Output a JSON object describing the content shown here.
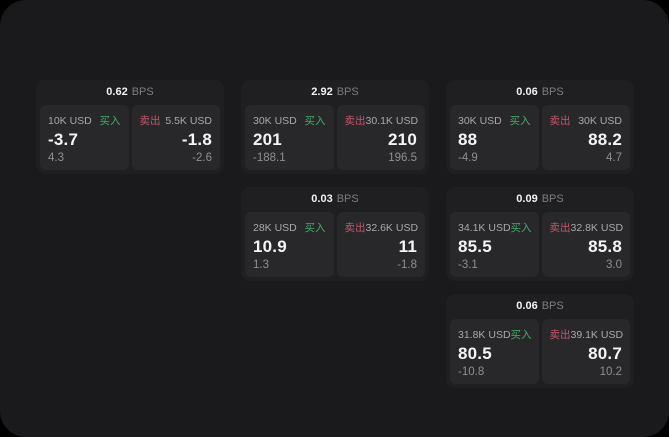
{
  "labels": {
    "buy": "买入",
    "sell": "卖出",
    "bps": "BPS"
  },
  "colors": {
    "surface": "#1a1a1c",
    "card": "#1f1f21",
    "panel": "#28282b",
    "buy_green": "#43ac69",
    "sell_red": "#c5566b"
  },
  "cards": [
    {
      "bps": "0.62",
      "buy": {
        "size": "10K USD",
        "value": "-3.7",
        "sub": "4.3"
      },
      "sell": {
        "size": "5.5K USD",
        "value": "-1.8",
        "sub": "-2.6"
      }
    },
    {
      "bps": "2.92",
      "buy": {
        "size": "30K USD",
        "value": "201",
        "sub": "-188.1"
      },
      "sell": {
        "size": "30.1K USD",
        "value": "210",
        "sub": "196.5"
      }
    },
    {
      "bps": "0.06",
      "buy": {
        "size": "30K USD",
        "value": "88",
        "sub": "-4.9"
      },
      "sell": {
        "size": "30K USD",
        "value": "88.2",
        "sub": "4.7"
      }
    },
    {
      "bps": "0.03",
      "buy": {
        "size": "28K USD",
        "value": "10.9",
        "sub": "1.3"
      },
      "sell": {
        "size": "32.6K USD",
        "value": "11",
        "sub": "-1.8"
      }
    },
    {
      "bps": "0.09",
      "buy": {
        "size": "34.1K USD",
        "value": "85.5",
        "sub": "-3.1"
      },
      "sell": {
        "size": "32.8K USD",
        "value": "85.8",
        "sub": "3.0"
      }
    },
    {
      "bps": "0.06",
      "buy": {
        "size": "31.8K USD",
        "value": "80.5",
        "sub": "-10.8"
      },
      "sell": {
        "size": "39.1K USD",
        "value": "80.7",
        "sub": "10.2"
      }
    }
  ]
}
